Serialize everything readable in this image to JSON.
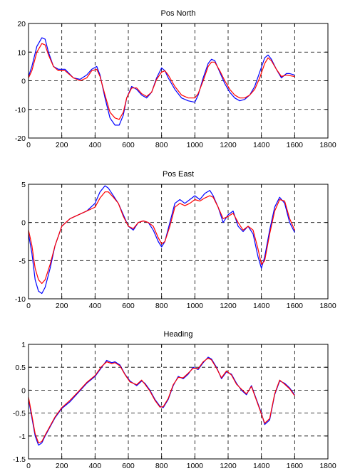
{
  "chart_data": [
    {
      "type": "line",
      "title": "Pos North",
      "xlim": [
        0,
        1800
      ],
      "ylim": [
        -20,
        20
      ],
      "xticks": [
        0,
        200,
        400,
        600,
        800,
        1000,
        1200,
        1400,
        1600,
        1800
      ],
      "yticks": [
        -20,
        -10,
        0,
        10,
        20
      ],
      "grid": true,
      "series": [
        {
          "color": "#0000ff",
          "x": [
            0,
            20,
            50,
            80,
            100,
            120,
            150,
            180,
            220,
            270,
            310,
            350,
            380,
            410,
            430,
            460,
            490,
            520,
            545,
            570,
            590,
            620,
            650,
            680,
            710,
            740,
            770,
            800,
            820,
            840,
            880,
            920,
            960,
            1000,
            1020,
            1050,
            1080,
            1100,
            1120,
            1150,
            1180,
            1210,
            1240,
            1270,
            1300,
            1330,
            1360,
            1390,
            1420,
            1440,
            1460,
            1490,
            1520,
            1550,
            1570,
            1600
          ],
          "y": [
            1.5,
            5,
            12,
            15,
            14.5,
            10,
            5,
            4,
            4,
            1,
            0.5,
            2,
            4,
            5,
            2,
            -6,
            -13,
            -15.5,
            -15.5,
            -12,
            -6,
            -2,
            -3,
            -5,
            -6,
            -4,
            1,
            4.5,
            3.5,
            1,
            -3,
            -6,
            -7,
            -7.5,
            -5,
            1,
            6,
            7.5,
            7,
            3,
            -1,
            -4,
            -6,
            -7,
            -6.5,
            -5,
            -2,
            3,
            8,
            9,
            7.5,
            4,
            1,
            2.5,
            2.5,
            2
          ]
        },
        {
          "color": "#ff0000",
          "x": [
            0,
            20,
            50,
            80,
            100,
            120,
            150,
            180,
            220,
            270,
            310,
            350,
            380,
            410,
            430,
            460,
            490,
            520,
            545,
            570,
            590,
            620,
            650,
            680,
            710,
            740,
            770,
            800,
            820,
            840,
            880,
            920,
            960,
            1000,
            1020,
            1050,
            1080,
            1100,
            1120,
            1150,
            1180,
            1210,
            1240,
            1270,
            1300,
            1330,
            1360,
            1390,
            1420,
            1440,
            1460,
            1490,
            1520,
            1550,
            1570,
            1600
          ],
          "y": [
            1,
            3.5,
            10,
            13,
            12.5,
            9,
            5,
            3.5,
            3.5,
            1,
            0,
            1,
            3.5,
            4,
            1.5,
            -5,
            -11,
            -13,
            -13.5,
            -11,
            -6,
            -2.5,
            -2.5,
            -4.5,
            -5.5,
            -4,
            0.5,
            3,
            3.5,
            2,
            -2,
            -5,
            -6,
            -6,
            -4.5,
            0,
            5,
            6.5,
            6.5,
            3.5,
            0,
            -3,
            -5,
            -6,
            -6,
            -5,
            -3,
            1,
            6,
            8,
            7,
            4,
            1.5,
            2,
            1.8,
            1.5
          ]
        }
      ]
    },
    {
      "type": "line",
      "title": "Pos East",
      "xlim": [
        0,
        1800
      ],
      "ylim": [
        -10,
        5
      ],
      "xticks": [
        0,
        200,
        400,
        600,
        800,
        1000,
        1200,
        1400,
        1600,
        1800
      ],
      "yticks": [
        -10,
        -5,
        0,
        5
      ],
      "grid": true,
      "series": [
        {
          "color": "#0000ff",
          "x": [
            0,
            20,
            40,
            60,
            80,
            100,
            130,
            160,
            200,
            250,
            300,
            350,
            400,
            430,
            460,
            480,
            510,
            540,
            570,
            600,
            630,
            660,
            690,
            720,
            750,
            780,
            800,
            820,
            850,
            880,
            910,
            940,
            970,
            1000,
            1030,
            1060,
            1090,
            1110,
            1140,
            1170,
            1200,
            1230,
            1260,
            1290,
            1320,
            1350,
            1380,
            1400,
            1420,
            1450,
            1480,
            1510,
            1540,
            1570,
            1600
          ],
          "y": [
            -1.5,
            -4,
            -7.5,
            -9,
            -9.3,
            -8.5,
            -6,
            -3,
            -0.5,
            0.5,
            1,
            1.5,
            2.5,
            4,
            4.8,
            4.5,
            3.5,
            2.5,
            1,
            -0.5,
            -1,
            0,
            0.2,
            0,
            -1,
            -2.5,
            -3.2,
            -2.5,
            0,
            2.5,
            3,
            2.5,
            3,
            3.5,
            3,
            3.8,
            4.2,
            3.5,
            2,
            0,
            1,
            1.5,
            -0.5,
            -1.2,
            -0.5,
            -1.5,
            -4.5,
            -6,
            -4.5,
            -1,
            2,
            3.3,
            2.5,
            0,
            -1.3
          ]
        },
        {
          "color": "#ff0000",
          "x": [
            0,
            20,
            40,
            60,
            80,
            100,
            130,
            160,
            200,
            250,
            300,
            350,
            400,
            430,
            460,
            480,
            510,
            540,
            570,
            600,
            630,
            660,
            690,
            720,
            750,
            780,
            800,
            820,
            850,
            880,
            910,
            940,
            970,
            1000,
            1030,
            1060,
            1090,
            1110,
            1140,
            1170,
            1200,
            1230,
            1260,
            1290,
            1320,
            1350,
            1380,
            1400,
            1420,
            1450,
            1480,
            1510,
            1540,
            1570,
            1600
          ],
          "y": [
            -1,
            -3,
            -6,
            -7.5,
            -8,
            -7.5,
            -5.5,
            -3,
            -0.5,
            0.5,
            1,
            1.5,
            2,
            3.2,
            4,
            4,
            3.3,
            2.5,
            0.8,
            -0.5,
            -0.8,
            0,
            0.2,
            0,
            -0.5,
            -2,
            -2.8,
            -2.5,
            -0.5,
            2,
            2.5,
            2.2,
            2.5,
            3,
            2.8,
            3.2,
            3.5,
            3.3,
            2,
            0.5,
            0.8,
            1.2,
            0,
            -1,
            -0.5,
            -1,
            -3.5,
            -5.5,
            -5,
            -1.5,
            1.5,
            3,
            2.8,
            0.5,
            -1
          ]
        }
      ]
    },
    {
      "type": "line",
      "title": "Heading",
      "xlim": [
        0,
        1800
      ],
      "ylim": [
        -1.5,
        1
      ],
      "xticks": [
        0,
        200,
        400,
        600,
        800,
        1000,
        1200,
        1400,
        1600,
        1800
      ],
      "yticks": [
        -1.5,
        -1,
        -0.5,
        0,
        0.5,
        1
      ],
      "grid": true,
      "series": [
        {
          "color": "#0000ff",
          "x": [
            0,
            20,
            40,
            60,
            80,
            100,
            130,
            160,
            200,
            250,
            300,
            350,
            400,
            440,
            470,
            500,
            520,
            550,
            580,
            610,
            650,
            680,
            700,
            730,
            760,
            790,
            810,
            840,
            870,
            900,
            930,
            960,
            990,
            1020,
            1050,
            1080,
            1100,
            1130,
            1160,
            1190,
            1220,
            1250,
            1280,
            1310,
            1340,
            1370,
            1400,
            1420,
            1450,
            1480,
            1510,
            1540,
            1570,
            1600
          ],
          "y": [
            -0.2,
            -0.6,
            -1.0,
            -1.2,
            -1.15,
            -1.0,
            -0.8,
            -0.6,
            -0.4,
            -0.25,
            -0.05,
            0.15,
            0.3,
            0.5,
            0.65,
            0.6,
            0.62,
            0.55,
            0.35,
            0.2,
            0.1,
            0.2,
            0.15,
            0.0,
            -0.2,
            -0.35,
            -0.38,
            -0.2,
            0.1,
            0.3,
            0.25,
            0.35,
            0.5,
            0.45,
            0.6,
            0.72,
            0.68,
            0.5,
            0.25,
            0.4,
            0.35,
            0.15,
            0.0,
            -0.1,
            0.1,
            -0.2,
            -0.5,
            -0.75,
            -0.65,
            -0.1,
            0.2,
            0.15,
            0.05,
            -0.1
          ]
        },
        {
          "color": "#ff0000",
          "x": [
            0,
            20,
            40,
            60,
            80,
            100,
            130,
            160,
            200,
            250,
            300,
            350,
            400,
            440,
            470,
            500,
            520,
            550,
            580,
            610,
            650,
            680,
            700,
            730,
            760,
            790,
            810,
            840,
            870,
            900,
            930,
            960,
            990,
            1020,
            1050,
            1080,
            1100,
            1130,
            1160,
            1190,
            1220,
            1250,
            1280,
            1310,
            1340,
            1370,
            1400,
            1420,
            1450,
            1480,
            1510,
            1540,
            1570,
            1600
          ],
          "y": [
            -0.15,
            -0.55,
            -0.95,
            -1.15,
            -1.12,
            -0.98,
            -0.78,
            -0.58,
            -0.38,
            -0.22,
            -0.03,
            0.17,
            0.32,
            0.52,
            0.62,
            0.58,
            0.6,
            0.53,
            0.34,
            0.18,
            0.12,
            0.22,
            0.13,
            -0.02,
            -0.22,
            -0.37,
            -0.36,
            -0.18,
            0.12,
            0.28,
            0.27,
            0.37,
            0.48,
            0.47,
            0.62,
            0.7,
            0.66,
            0.48,
            0.27,
            0.42,
            0.33,
            0.13,
            0.02,
            -0.08,
            0.08,
            -0.22,
            -0.52,
            -0.72,
            -0.62,
            -0.08,
            0.22,
            0.13,
            0.03,
            -0.12
          ]
        }
      ]
    }
  ]
}
